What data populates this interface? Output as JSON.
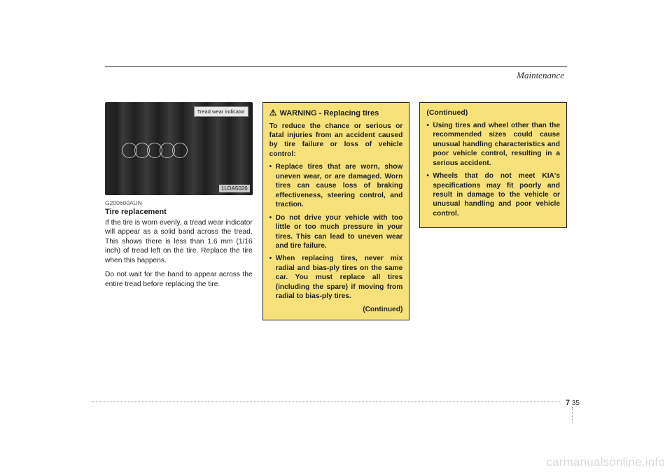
{
  "section_title": "Maintenance",
  "figure": {
    "indicator_label": "Tread wear indicator",
    "image_code": "1LDA5026",
    "ref_code": "G200600AUN"
  },
  "col1": {
    "heading": "Tire replacement",
    "para1": "If the tire is worn evenly, a tread wear indicator will appear as a solid band across the tread. This shows there is less than 1.6 mm (1/16 inch) of tread left on the tire. Replace the tire when this happens.",
    "para2": "Do not wait for the band to appear across the entire tread before replacing the tire."
  },
  "warning": {
    "label": "WARNING",
    "subject": "- Replacing tires",
    "intro": "To reduce the chance or serious or fatal injuries from an accident caused by tire failure or loss of vehicle control:",
    "items": [
      "Replace tires that are worn, show uneven wear, or are damaged. Worn tires can cause loss of braking effectiveness, steering control, and traction.",
      "Do not drive your vehicle with too little or too much pressure in your tires. This can lead to uneven wear and tire failure.",
      "When replacing tires, never mix radial and bias-ply tires on the same car. You must replace all tires (including the spare) if moving from radial to bias-ply tires."
    ],
    "continued": "(Continued)"
  },
  "continued_box": {
    "heading": "(Continued)",
    "items": [
      "Using tires and wheel other than the recommended sizes could cause unusual handling characteristics and poor vehicle control, resulting in a serious accident.",
      "Wheels that do not meet KIA's specifications may fit poorly and result in damage to the vehicle or unusual handling and poor vehicle control."
    ]
  },
  "page": {
    "chapter": "7",
    "number": "35"
  },
  "watermark": "carmanualsonline.info",
  "colors": {
    "box_bg": "#f7e17a",
    "box_border": "#222222",
    "text": "#222222",
    "watermark": "#d9d9d9"
  }
}
